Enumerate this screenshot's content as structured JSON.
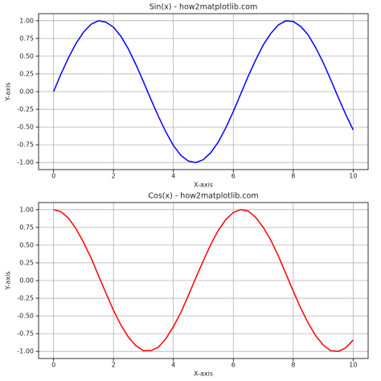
{
  "chart_data": [
    {
      "type": "line",
      "title": "Sin(x) - how2matplotlib.com",
      "xlabel": "X-axis",
      "ylabel": "Y-axis",
      "color": "#0000ff",
      "grid": true,
      "x": [
        0,
        0.25,
        0.5,
        0.75,
        1,
        1.25,
        1.5,
        1.75,
        2,
        2.25,
        2.5,
        2.75,
        3,
        3.25,
        3.5,
        3.75,
        4,
        4.25,
        4.5,
        4.75,
        5,
        5.25,
        5.5,
        5.75,
        6,
        6.25,
        6.5,
        6.75,
        7,
        7.25,
        7.5,
        7.75,
        8,
        8.25,
        8.5,
        8.75,
        9,
        9.25,
        9.5,
        9.75,
        10
      ],
      "values": [
        0,
        0.25,
        0.48,
        0.68,
        0.84,
        0.95,
        1.0,
        0.98,
        0.91,
        0.78,
        0.6,
        0.38,
        0.14,
        -0.11,
        -0.35,
        -0.57,
        -0.76,
        -0.9,
        -0.98,
        -1.0,
        -0.96,
        -0.86,
        -0.71,
        -0.51,
        -0.28,
        -0.03,
        0.22,
        0.45,
        0.66,
        0.82,
        0.94,
        1.0,
        0.99,
        0.92,
        0.8,
        0.62,
        0.41,
        0.17,
        -0.08,
        -0.32,
        -0.54
      ],
      "xlim": [
        -0.5,
        10.5
      ],
      "xticks": [
        0,
        2,
        4,
        6,
        8,
        10
      ],
      "ylim": [
        -1.1,
        1.1
      ],
      "yticks": [
        {
          "value": -1,
          "label": "-1.00"
        },
        {
          "value": -0.75,
          "label": "-0.75"
        },
        {
          "value": -0.5,
          "label": "-0.50"
        },
        {
          "value": -0.25,
          "label": "-0.25"
        },
        {
          "value": 0,
          "label": "0.00"
        },
        {
          "value": 0.25,
          "label": "0.25"
        },
        {
          "value": 0.5,
          "label": "0.50"
        },
        {
          "value": 0.75,
          "label": "0.75"
        },
        {
          "value": 1,
          "label": "1.00"
        }
      ]
    },
    {
      "type": "line",
      "title": "Cos(x) - how2matplotlib.com",
      "xlabel": "X-axis",
      "ylabel": "Y-axis",
      "color": "#ff0000",
      "grid": true,
      "x": [
        0,
        0.25,
        0.5,
        0.75,
        1,
        1.25,
        1.5,
        1.75,
        2,
        2.25,
        2.5,
        2.75,
        3,
        3.25,
        3.5,
        3.75,
        4,
        4.25,
        4.5,
        4.75,
        5,
        5.25,
        5.5,
        5.75,
        6,
        6.25,
        6.5,
        6.75,
        7,
        7.25,
        7.5,
        7.75,
        8,
        8.25,
        8.5,
        8.75,
        9,
        9.25,
        9.5,
        9.75,
        10
      ],
      "values": [
        1.0,
        0.97,
        0.88,
        0.73,
        0.54,
        0.32,
        0.07,
        -0.18,
        -0.42,
        -0.63,
        -0.8,
        -0.92,
        -0.99,
        -0.99,
        -0.94,
        -0.82,
        -0.65,
        -0.45,
        -0.21,
        0.04,
        0.28,
        0.51,
        0.71,
        0.86,
        0.96,
        1.0,
        0.98,
        0.89,
        0.75,
        0.57,
        0.35,
        0.1,
        -0.15,
        -0.39,
        -0.6,
        -0.78,
        -0.91,
        -0.99,
        -1.0,
        -0.95,
        -0.84
      ],
      "xlim": [
        -0.5,
        10.5
      ],
      "xticks": [
        0,
        2,
        4,
        6,
        8,
        10
      ],
      "ylim": [
        -1.1,
        1.1
      ],
      "yticks": [
        {
          "value": -1,
          "label": "-1.00"
        },
        {
          "value": -0.75,
          "label": "-0.75"
        },
        {
          "value": -0.5,
          "label": "-0.50"
        },
        {
          "value": -0.25,
          "label": "-0.25"
        },
        {
          "value": 0,
          "label": "0.00"
        },
        {
          "value": 0.25,
          "label": "0.25"
        },
        {
          "value": 0.5,
          "label": "0.50"
        },
        {
          "value": 0.75,
          "label": "0.75"
        },
        {
          "value": 1,
          "label": "1.00"
        }
      ]
    }
  ]
}
